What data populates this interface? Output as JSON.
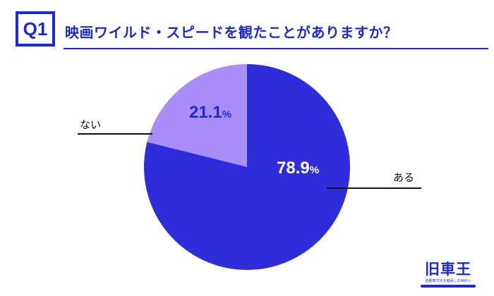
{
  "theme": {
    "accent": "#1c2ad4",
    "slice_major_color": "#2e2cdb",
    "slice_minor_color": "#a98ef8"
  },
  "header": {
    "question_number": "Q1",
    "title": "映画ワイルド・スピードを観たことがありますか？"
  },
  "chart_data": {
    "type": "pie",
    "title": "映画ワイルド・スピードを観たことがありますか？",
    "labels": [
      "ある",
      "ない"
    ],
    "values": [
      78.9,
      21.1
    ],
    "unit": "%",
    "colors": [
      "#2e2cdb",
      "#a98ef8"
    ],
    "start_angle_deg": 0,
    "direction": "clockwise",
    "legend_position": "callout-lines"
  },
  "logo": {
    "brand": "旧車王",
    "tagline": "自動車文化を継承し次世代へ"
  }
}
